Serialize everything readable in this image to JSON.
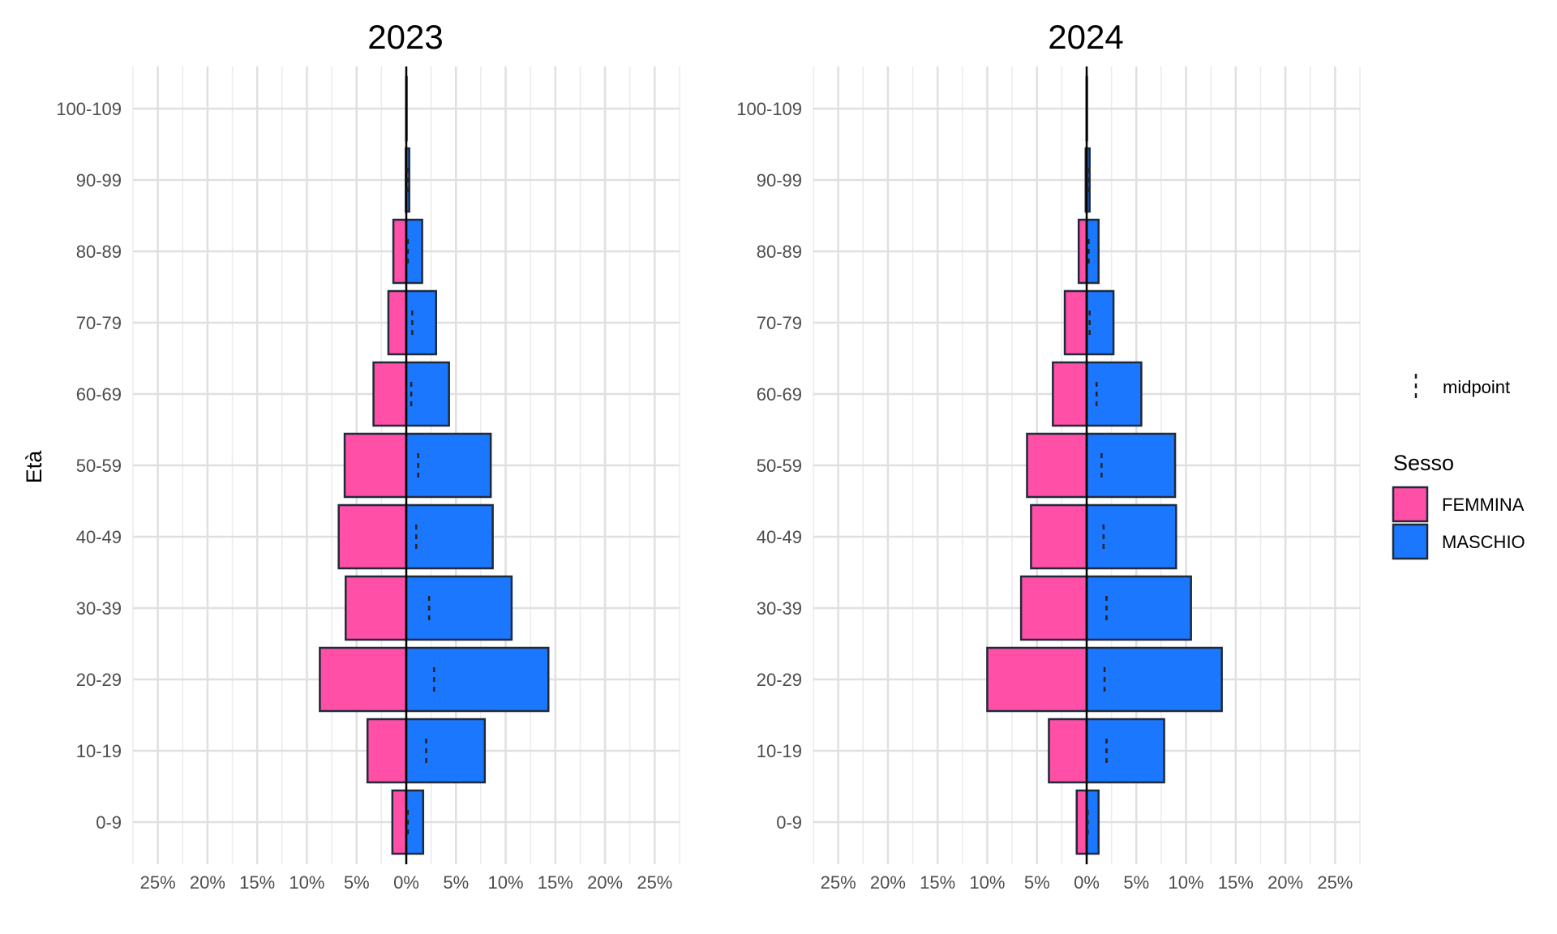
{
  "chart_data": {
    "type": "bar",
    "subtype": "population-pyramid",
    "ylabel": "Età",
    "categories": [
      "0-9",
      "10-19",
      "20-29",
      "30-39",
      "40-49",
      "50-59",
      "60-69",
      "70-79",
      "80-89",
      "90-99",
      "100-109"
    ],
    "xticks": [
      "25%",
      "20%",
      "15%",
      "10%",
      "5%",
      "0%",
      "5%",
      "10%",
      "15%",
      "20%",
      "25%"
    ],
    "xlim": [
      -27.5,
      27.5
    ],
    "grid": true,
    "legend": {
      "placement": "right",
      "midpoint_label": "midpoint",
      "title": "Sesso",
      "entries": [
        {
          "label": "FEMMINA",
          "color": "#FF4FA6"
        },
        {
          "label": "MASCHIO",
          "color": "#1C77FF"
        }
      ]
    },
    "panels": [
      {
        "title": "2023",
        "series": [
          {
            "name": "FEMMINA",
            "values": [
              1.4,
              3.9,
              8.7,
              6.1,
              6.8,
              6.2,
              3.3,
              1.8,
              1.3,
              0.05,
              0.02
            ]
          },
          {
            "name": "MASCHIO",
            "values": [
              1.7,
              7.9,
              14.3,
              10.6,
              8.7,
              8.5,
              4.3,
              3.0,
              1.6,
              0.3,
              0.02
            ]
          },
          {
            "name": "midpoint",
            "values": [
              0.15,
              2.0,
              2.8,
              2.3,
              1.0,
              1.2,
              0.5,
              0.6,
              0.15,
              0.12,
              0.0
            ]
          }
        ]
      },
      {
        "title": "2024",
        "series": [
          {
            "name": "FEMMINA",
            "values": [
              1.0,
              3.8,
              10.0,
              6.6,
              5.6,
              6.0,
              3.4,
              2.2,
              0.8,
              0.1,
              0.02
            ]
          },
          {
            "name": "MASCHIO",
            "values": [
              1.2,
              7.8,
              13.6,
              10.5,
              9.0,
              8.9,
              5.5,
              2.7,
              1.2,
              0.3,
              0.02
            ]
          },
          {
            "name": "midpoint",
            "values": [
              0.1,
              2.0,
              1.8,
              2.0,
              1.7,
              1.5,
              1.0,
              0.3,
              0.2,
              0.1,
              0.0
            ]
          }
        ]
      }
    ]
  }
}
